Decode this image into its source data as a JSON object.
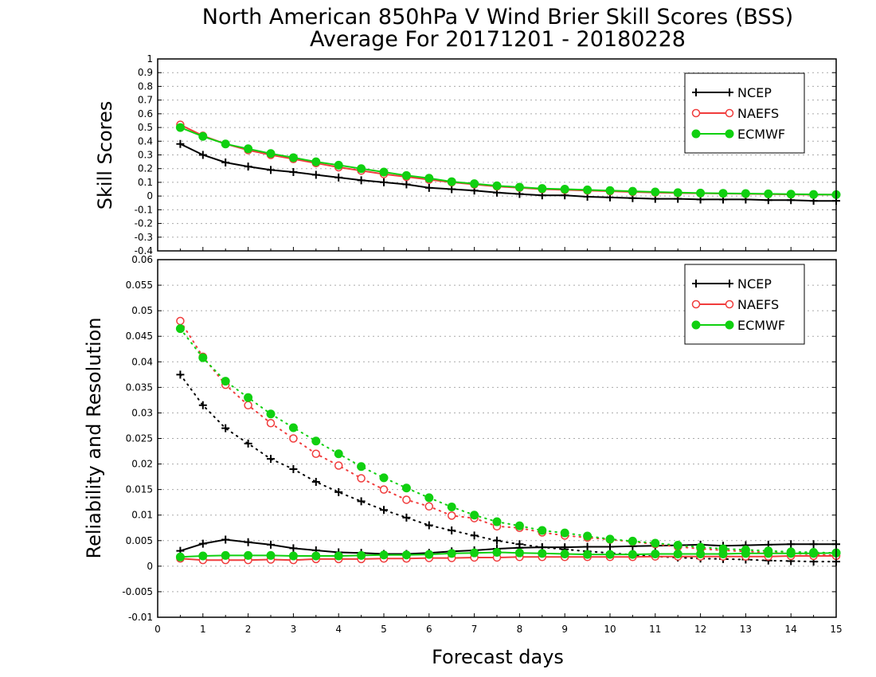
{
  "title_line1": "North American 850hPa V Wind Brier Skill Scores (BSS)",
  "title_line2": "Average For 20171201 - 20180228",
  "colors": {
    "ncep": "#000000",
    "naefs": "#f03c3c",
    "ecmwf": "#10d010"
  },
  "chart_data": [
    {
      "type": "line",
      "ylabel": "Skill Scores",
      "ylim": [
        -0.4,
        1
      ],
      "xlim": [
        0,
        15
      ],
      "y_ticks": [
        "-0.4",
        "-0.3",
        "-0.2",
        "-0.1",
        "0",
        "0.1",
        "0.2",
        "0.3",
        "0.4",
        "0.5",
        "0.6",
        "0.7",
        "0.8",
        "0.9",
        "1"
      ],
      "grid": true,
      "legend": "top-right",
      "x": [
        0.5,
        1,
        1.5,
        2,
        2.5,
        3,
        3.5,
        4,
        4.5,
        5,
        5.5,
        6,
        6.5,
        7,
        7.5,
        8,
        8.5,
        9,
        9.5,
        10,
        10.5,
        11,
        11.5,
        12,
        12.5,
        13,
        13.5,
        14,
        14.5,
        15
      ],
      "series": [
        {
          "name": "NCEP",
          "marker": "plus",
          "color": "#000000",
          "values": [
            0.38,
            0.3,
            0.245,
            0.215,
            0.19,
            0.175,
            0.155,
            0.135,
            0.115,
            0.1,
            0.085,
            0.06,
            0.05,
            0.04,
            0.025,
            0.015,
            0.005,
            0.005,
            -0.005,
            -0.01,
            -0.015,
            -0.02,
            -0.02,
            -0.025,
            -0.025,
            -0.025,
            -0.03,
            -0.03,
            -0.035,
            -0.035
          ]
        },
        {
          "name": "NAEFS",
          "marker": "open-circle",
          "color": "#f03c3c",
          "values": [
            0.52,
            0.44,
            0.38,
            0.335,
            0.3,
            0.27,
            0.24,
            0.21,
            0.185,
            0.16,
            0.14,
            0.12,
            0.1,
            0.085,
            0.07,
            0.06,
            0.05,
            0.045,
            0.04,
            0.035,
            0.03,
            0.025,
            0.022,
            0.02,
            0.018,
            0.016,
            0.014,
            0.012,
            0.01,
            0.01
          ]
        },
        {
          "name": "ECMWF",
          "marker": "filled-circle",
          "color": "#10d010",
          "values": [
            0.5,
            0.435,
            0.38,
            0.345,
            0.31,
            0.28,
            0.25,
            0.225,
            0.2,
            0.175,
            0.15,
            0.13,
            0.105,
            0.09,
            0.075,
            0.065,
            0.055,
            0.05,
            0.045,
            0.04,
            0.035,
            0.03,
            0.025,
            0.022,
            0.02,
            0.018,
            0.016,
            0.014,
            0.012,
            0.01
          ]
        }
      ]
    },
    {
      "type": "line",
      "ylabel": "Reliability and Resolution",
      "xlabel": "Forecast days",
      "ylim": [
        -0.01,
        0.06
      ],
      "xlim": [
        0,
        15
      ],
      "y_ticks": [
        "-0.01",
        "-0.005",
        "0",
        "0.005",
        "0.01",
        "0.015",
        "0.02",
        "0.025",
        "0.03",
        "0.035",
        "0.04",
        "0.045",
        "0.05",
        "0.055",
        "0.06"
      ],
      "x_ticks": [
        "0",
        "1",
        "2",
        "3",
        "4",
        "5",
        "6",
        "7",
        "8",
        "9",
        "10",
        "11",
        "12",
        "13",
        "14",
        "15"
      ],
      "grid": true,
      "legend": "top-right",
      "x": [
        0.5,
        1,
        1.5,
        2,
        2.5,
        3,
        3.5,
        4,
        4.5,
        5,
        5.5,
        6,
        6.5,
        7,
        7.5,
        8,
        8.5,
        9,
        9.5,
        10,
        10.5,
        11,
        11.5,
        12,
        12.5,
        13,
        13.5,
        14,
        14.5,
        15
      ],
      "series": [
        {
          "name": "NCEP",
          "marker": "plus",
          "color": "#000000",
          "component": "resolution",
          "linestyle": "dotted",
          "values": [
            0.0375,
            0.0315,
            0.027,
            0.024,
            0.021,
            0.019,
            0.0165,
            0.0145,
            0.0127,
            0.011,
            0.0095,
            0.008,
            0.007,
            0.006,
            0.005,
            0.0043,
            0.0037,
            0.0033,
            0.0029,
            0.0026,
            0.0022,
            0.0019,
            0.0017,
            0.0015,
            0.0014,
            0.0013,
            0.0011,
            0.001,
            0.0009,
            0.0009
          ]
        },
        {
          "name": "NCEP",
          "marker": "plus",
          "color": "#000000",
          "component": "reliability",
          "linestyle": "solid",
          "values": [
            0.003,
            0.0044,
            0.0052,
            0.0047,
            0.0042,
            0.0035,
            0.0031,
            0.0027,
            0.0026,
            0.0024,
            0.0024,
            0.0026,
            0.0029,
            0.0031,
            0.0034,
            0.0036,
            0.0037,
            0.0037,
            0.0038,
            0.0038,
            0.0039,
            0.004,
            0.0041,
            0.0042,
            0.004,
            0.0041,
            0.0042,
            0.0043,
            0.0043,
            0.0043
          ]
        },
        {
          "name": "NAEFS",
          "marker": "open-circle",
          "color": "#f03c3c",
          "component": "resolution",
          "linestyle": "dotted",
          "values": [
            0.048,
            0.041,
            0.0355,
            0.0315,
            0.028,
            0.025,
            0.022,
            0.0197,
            0.0172,
            0.015,
            0.013,
            0.0117,
            0.0099,
            0.0094,
            0.0078,
            0.0075,
            0.0066,
            0.006,
            0.0056,
            0.0052,
            0.0048,
            0.0043,
            0.0038,
            0.0034,
            0.0031,
            0.0029,
            0.0027,
            0.0025,
            0.0023,
            0.0021
          ]
        },
        {
          "name": "NAEFS",
          "marker": "open-circle",
          "color": "#f03c3c",
          "component": "reliability",
          "linestyle": "solid",
          "values": [
            0.0015,
            0.0012,
            0.0012,
            0.0012,
            0.0013,
            0.0012,
            0.0014,
            0.0014,
            0.0014,
            0.0015,
            0.0015,
            0.0016,
            0.0016,
            0.0017,
            0.0017,
            0.0018,
            0.0018,
            0.0018,
            0.0018,
            0.0018,
            0.0018,
            0.0019,
            0.0019,
            0.0019,
            0.0019,
            0.0019,
            0.0019,
            0.002,
            0.002,
            0.002
          ]
        },
        {
          "name": "ECMWF",
          "marker": "filled-circle",
          "color": "#10d010",
          "component": "resolution",
          "linestyle": "dotted",
          "values": [
            0.0465,
            0.0408,
            0.0362,
            0.033,
            0.0298,
            0.0271,
            0.0245,
            0.022,
            0.0195,
            0.0173,
            0.0153,
            0.0134,
            0.0116,
            0.01,
            0.0087,
            0.0079,
            0.007,
            0.0065,
            0.0059,
            0.0053,
            0.0049,
            0.0045,
            0.0041,
            0.0037,
            0.0034,
            0.0032,
            0.003,
            0.0028,
            0.0027,
            0.0026
          ]
        },
        {
          "name": "ECMWF",
          "marker": "filled-circle",
          "color": "#10d010",
          "component": "reliability",
          "linestyle": "solid",
          "values": [
            0.0018,
            0.002,
            0.0021,
            0.0021,
            0.0021,
            0.002,
            0.002,
            0.002,
            0.0021,
            0.0022,
            0.0022,
            0.0023,
            0.0025,
            0.0026,
            0.0027,
            0.0026,
            0.0025,
            0.0024,
            0.0023,
            0.0023,
            0.0023,
            0.0024,
            0.0024,
            0.0024,
            0.0024,
            0.0025,
            0.0025,
            0.0025,
            0.0025,
            0.0026
          ]
        }
      ]
    }
  ]
}
